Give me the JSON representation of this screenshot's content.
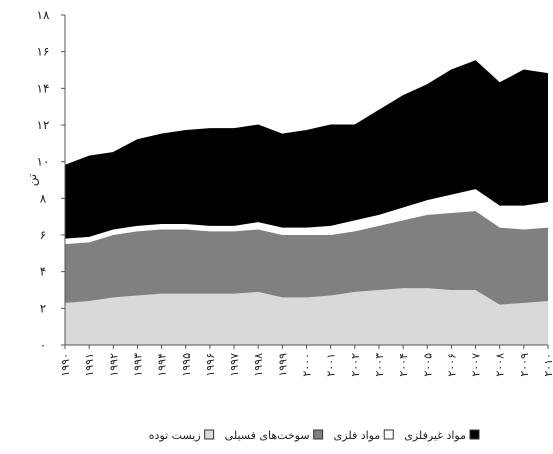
{
  "chart_data": {
    "type": "stacked_area",
    "y_label": "تن",
    "categories": [
      "۱۹۹۰",
      "۱۹۹۱",
      "۱۹۹۲",
      "۱۹۹۳",
      "۱۹۹۴",
      "۱۹۹۵",
      "۱۹۹۶",
      "۱۹۹۷",
      "۱۹۹۸",
      "۱۹۹۹",
      "۲۰۰۰",
      "۲۰۰۱",
      "۲۰۰۲",
      "۲۰۰۳",
      "۲۰۰۴",
      "۲۰۰۵",
      "۲۰۰۶",
      "۲۰۰۷",
      "۲۰۰۸",
      "۲۰۰۹",
      "۲۰۱۰"
    ],
    "series": [
      {
        "name": "زیست توده",
        "color": "#d9d9d9",
        "values": [
          2.3,
          2.4,
          2.6,
          2.7,
          2.8,
          2.8,
          2.8,
          2.8,
          2.9,
          2.6,
          2.6,
          2.7,
          2.9,
          3.0,
          3.1,
          3.1,
          3.0,
          3.0,
          2.2,
          2.3,
          2.4
        ]
      },
      {
        "name": "سوخت‌های فسیلی",
        "color": "#808080",
        "values": [
          3.2,
          3.2,
          3.4,
          3.5,
          3.5,
          3.5,
          3.4,
          3.4,
          3.4,
          3.4,
          3.4,
          3.3,
          3.3,
          3.5,
          3.7,
          4.0,
          4.2,
          4.3,
          4.2,
          4.0,
          4.0
        ]
      },
      {
        "name": "مواد فلزی",
        "color": "#ffffff",
        "values": [
          0.3,
          0.3,
          0.3,
          0.3,
          0.3,
          0.3,
          0.3,
          0.3,
          0.4,
          0.4,
          0.4,
          0.5,
          0.6,
          0.6,
          0.7,
          0.8,
          1.0,
          1.2,
          1.2,
          1.3,
          1.4
        ]
      },
      {
        "name": "مواد غیرفلزی",
        "color": "#000000",
        "values": [
          4.0,
          4.4,
          4.2,
          4.7,
          4.9,
          5.1,
          5.3,
          5.3,
          5.3,
          5.1,
          5.3,
          5.5,
          5.2,
          5.7,
          6.1,
          6.3,
          6.8,
          7.0,
          6.7,
          7.4,
          7.0
        ]
      }
    ],
    "ylim": [
      0,
      18
    ],
    "yticks": [
      {
        "value": 0,
        "label": "۰"
      },
      {
        "value": 2,
        "label": "۲"
      },
      {
        "value": 4,
        "label": "۴"
      },
      {
        "value": 6,
        "label": "۶"
      },
      {
        "value": 8,
        "label": "۸"
      },
      {
        "value": 10,
        "label": "۱۰"
      },
      {
        "value": 12,
        "label": "۱۲"
      },
      {
        "value": 14,
        "label": "۱۴"
      },
      {
        "value": 16,
        "label": "۱۶"
      },
      {
        "value": 18,
        "label": "۱۸"
      }
    ]
  }
}
